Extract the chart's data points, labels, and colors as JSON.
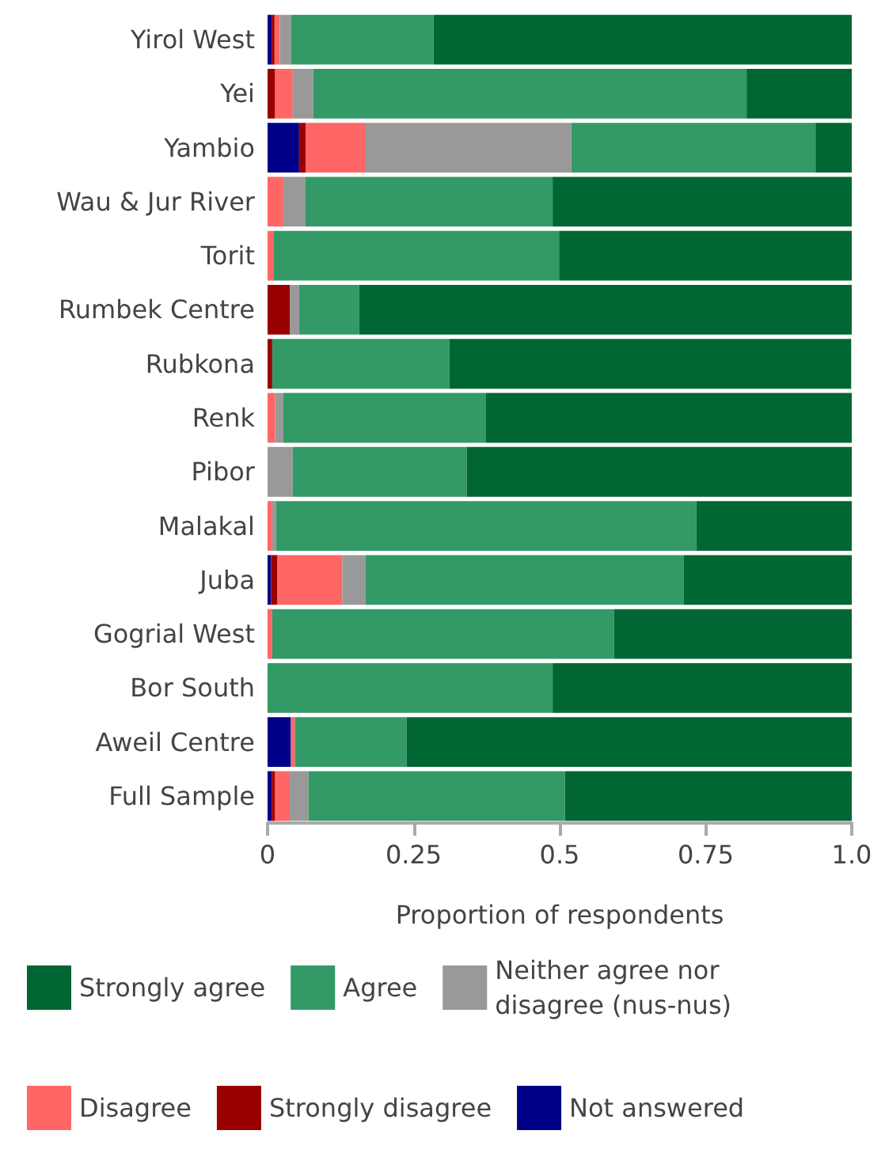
{
  "chart_data": {
    "type": "bar",
    "orientation": "horizontal",
    "stacked": true,
    "categories": [
      "Yirol West",
      "Yei",
      "Yambio",
      "Wau & Jur River",
      "Torit",
      "Rumbek Centre",
      "Rubkona",
      "Renk",
      "Pibor",
      "Malakal",
      "Juba",
      "Gogrial West",
      "Bor South",
      "Aweil Centre",
      "Full Sample"
    ],
    "xlabel": "Proportion of respondents",
    "xlim": [
      0,
      1
    ],
    "xticks": [
      0,
      0.25,
      0.5,
      0.75,
      {
        "value": 1,
        "label": "1.0"
      }
    ],
    "grid": false,
    "legend": "bottom",
    "series": [
      {
        "name": "Not answered",
        "color": "#000088",
        "values": [
          0.007,
          0,
          0.054,
          0,
          0,
          0,
          0,
          0,
          0,
          0,
          0.006,
          0,
          0,
          0.04,
          0.007
        ]
      },
      {
        "name": "Strongly disagree",
        "color": "#990000",
        "values": [
          0.005,
          0.013,
          0.011,
          0,
          0,
          0.038,
          0.008,
          0,
          0,
          0,
          0.011,
          0,
          0,
          0,
          0.006
        ]
      },
      {
        "name": "Disagree",
        "color": "#ff6666",
        "values": [
          0.009,
          0.03,
          0.103,
          0.027,
          0.01,
          0,
          0,
          0.013,
          0,
          0.008,
          0.111,
          0.008,
          0,
          0.007,
          0.025
        ]
      },
      {
        "name": "Neither agree nor\ndisagree (nus-nus)",
        "color": "#999999",
        "values": [
          0.019,
          0.035,
          0.352,
          0.038,
          0,
          0.016,
          0,
          0.014,
          0.043,
          0.007,
          0.04,
          0,
          0,
          0,
          0.032
        ]
      },
      {
        "name": "Agree",
        "color": "#339966",
        "values": [
          0.244,
          0.742,
          0.418,
          0.423,
          0.489,
          0.103,
          0.303,
          0.347,
          0.298,
          0.719,
          0.544,
          0.585,
          0.488,
          0.191,
          0.439
        ]
      },
      {
        "name": "Strongly agree",
        "color": "#006633",
        "values": [
          0.716,
          0.18,
          0.062,
          0.512,
          0.501,
          0.843,
          0.688,
          0.626,
          0.659,
          0.266,
          0.288,
          0.407,
          0.512,
          0.762,
          0.491
        ]
      }
    ]
  }
}
